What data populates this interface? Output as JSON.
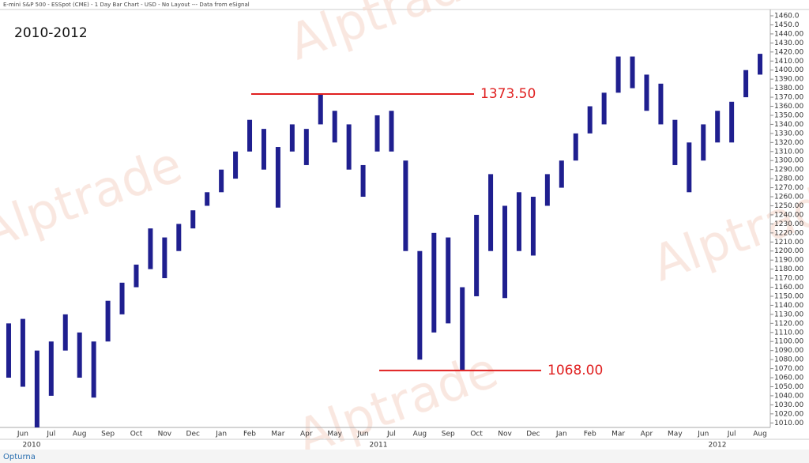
{
  "header": "E-mini S&P 500 - ESSpot (CME) - 1 Day Bar Chart - USD - No Layout --- Data from eSignal",
  "watermark": "Alptrade",
  "footer": "Opturna",
  "chart_data": {
    "type": "range-bar",
    "title": "2010-2012",
    "color": "#1f1f8f",
    "categories": [
      null,
      "Jun",
      null,
      "Jul",
      null,
      "Aug",
      null,
      "Sep",
      null,
      "Oct",
      null,
      "Nov",
      null,
      "Dec",
      null,
      "Jan",
      null,
      "Feb",
      null,
      "Mar",
      null,
      "Apr",
      null,
      "May",
      null,
      "Jun",
      null,
      "Jul",
      null,
      "Aug",
      null,
      "Sep",
      null,
      "Oct",
      null,
      "Nov",
      null,
      "Dec",
      null,
      "Jan",
      null,
      "Feb",
      null,
      "Mar",
      null,
      "Apr",
      null,
      "May",
      null,
      "Jun",
      null,
      "Jul",
      null,
      "Aug"
    ],
    "years": [
      "2010",
      "2011",
      "2012"
    ],
    "highs": [
      1120,
      1125,
      1090,
      1100,
      1130,
      1110,
      1100,
      1145,
      1165,
      1185,
      1225,
      1215,
      1230,
      1245,
      1265,
      1290,
      1310,
      1345,
      1335,
      1315,
      1340,
      1335,
      1373.5,
      1355,
      1340,
      1295,
      1350,
      1355,
      1300,
      1200,
      1220,
      1215,
      1160,
      1240,
      1285,
      1250,
      1265,
      1260,
      1285,
      1300,
      1330,
      1360,
      1375,
      1415,
      1415,
      1395,
      1385,
      1345,
      1320,
      1340,
      1355,
      1365,
      1400,
      1418
    ],
    "lows": [
      1060,
      1050,
      1005,
      1040,
      1090,
      1060,
      1038,
      1100,
      1130,
      1160,
      1180,
      1170,
      1200,
      1225,
      1250,
      1265,
      1280,
      1310,
      1290,
      1248,
      1310,
      1295,
      1340,
      1320,
      1290,
      1260,
      1310,
      1310,
      1200,
      1080,
      1110,
      1120,
      1068,
      1150,
      1200,
      1148,
      1200,
      1195,
      1250,
      1270,
      1300,
      1330,
      1340,
      1375,
      1380,
      1355,
      1340,
      1295,
      1265,
      1300,
      1320,
      1320,
      1370,
      1395
    ],
    "annotations": [
      {
        "value": 1373.5,
        "label": "1373.50"
      },
      {
        "value": 1068,
        "label": "1068.00"
      }
    ],
    "ylim": [
      1005,
      1467
    ],
    "yticks": [
      {
        "value": 1460,
        "label": "1460.0"
      },
      {
        "value": 1450,
        "label": "1450.0"
      },
      {
        "value": 1440,
        "label": "1440.00"
      },
      {
        "value": 1430,
        "label": "1430.00"
      },
      {
        "value": 1420,
        "label": "1420.00"
      },
      {
        "value": 1410,
        "label": "1410.00"
      },
      {
        "value": 1400,
        "label": "1400.00"
      },
      {
        "value": 1390,
        "label": "1390.00"
      },
      {
        "value": 1380,
        "label": "1380.00"
      },
      {
        "value": 1370,
        "label": "1370.00"
      },
      {
        "value": 1360,
        "label": "1360.00"
      },
      {
        "value": 1350,
        "label": "1350.00"
      },
      {
        "value": 1340,
        "label": "1340.00"
      },
      {
        "value": 1330,
        "label": "1330.00"
      },
      {
        "value": 1320,
        "label": "1320.00"
      },
      {
        "value": 1310,
        "label": "1310.00"
      },
      {
        "value": 1300,
        "label": "1300.00"
      },
      {
        "value": 1290,
        "label": "1290.00"
      },
      {
        "value": 1280,
        "label": "1280.00"
      },
      {
        "value": 1270,
        "label": "1270.00"
      },
      {
        "value": 1260,
        "label": "1260.00"
      },
      {
        "value": 1250,
        "label": "1250.00"
      },
      {
        "value": 1240,
        "label": "1240.00"
      },
      {
        "value": 1230,
        "label": "1230.00"
      },
      {
        "value": 1220,
        "label": "1220.00"
      },
      {
        "value": 1210,
        "label": "1210.00"
      },
      {
        "value": 1200,
        "label": "1200.00"
      },
      {
        "value": 1190,
        "label": "1190.00"
      },
      {
        "value": 1180,
        "label": "1180.00"
      },
      {
        "value": 1170,
        "label": "1170.00"
      },
      {
        "value": 1160,
        "label": "1160.00"
      },
      {
        "value": 1150,
        "label": "1150.00"
      },
      {
        "value": 1140,
        "label": "1140.00"
      },
      {
        "value": 1130,
        "label": "1130.00"
      },
      {
        "value": 1120,
        "label": "1120.00"
      },
      {
        "value": 1110,
        "label": "1110.00"
      },
      {
        "value": 1100,
        "label": "1100.00"
      },
      {
        "value": 1090,
        "label": "1090.00"
      },
      {
        "value": 1080,
        "label": "1080.00"
      },
      {
        "value": 1070,
        "label": "1070.00"
      },
      {
        "value": 1060,
        "label": "1060.00"
      },
      {
        "value": 1050,
        "label": "1050.00"
      },
      {
        "value": 1040,
        "label": "1040.00"
      },
      {
        "value": 1030,
        "label": "1030.00"
      },
      {
        "value": 1020,
        "label": "1020.00"
      },
      {
        "value": 1010,
        "label": "1010.00"
      }
    ],
    "grid": false
  }
}
